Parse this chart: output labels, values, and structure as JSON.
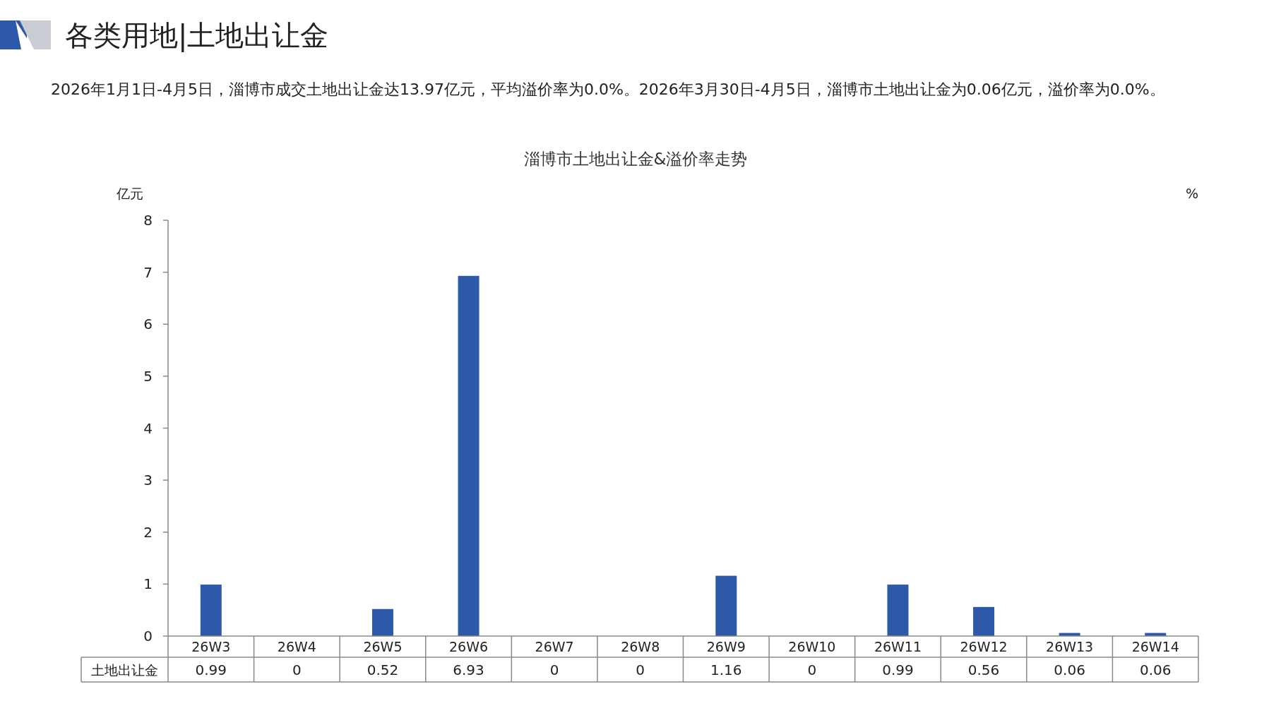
{
  "chart_data": {
    "type": "bar",
    "title": "淄博市土地出让金&溢价率走势",
    "annotations": [
      "各类用地|土地出让金",
      "2026年1月1日-4月5日，淄博市成交土地出让金达13.97亿元，平均溢价率为0.0%。2026年3月30日-4月5日，淄博市土地出让金为0.06亿元，溢价率为0.0%。"
    ],
    "ylabel": "亿元",
    "y2label": "%",
    "categories": [
      "26W3",
      "26W4",
      "26W5",
      "26W6",
      "26W7",
      "26W8",
      "26W9",
      "26W10",
      "26W11",
      "26W12",
      "26W13",
      "26W14"
    ],
    "series": [
      {
        "name": "土地出让金",
        "color": "#2e59a8",
        "values": [
          0.99,
          0,
          0.52,
          6.93,
          0,
          0,
          1.16,
          0,
          0.99,
          0.56,
          0.06,
          0.06
        ]
      }
    ],
    "ylim": [
      0,
      8
    ],
    "yticks": [
      0,
      1,
      2,
      3,
      4,
      5,
      6,
      7,
      8
    ],
    "data_labels": true,
    "grid": false
  }
}
